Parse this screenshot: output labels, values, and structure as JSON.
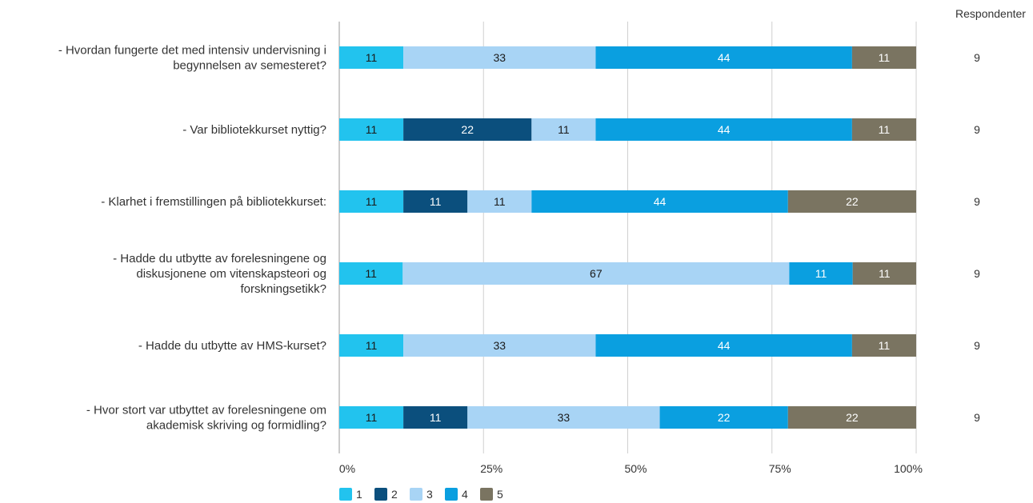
{
  "chart_data": {
    "type": "bar",
    "orientation": "horizontal",
    "stacked": "percent",
    "categories": [
      "- Hvordan fungerte det med intensiv undervisning i begynnelsen av semesteret?",
      "- Var bibliotekkurset nyttig?",
      "- Klarhet i fremstillingen på bibliotekkurset:",
      "- Hadde du utbytte av forelesningene og diskusjonene om vitenskapsteori og forskningsetikk?",
      "- Hadde du utbytte av HMS-kurset?",
      "- Hvor stort var utbyttet av forelesningene om akademisk skriving og formidling?"
    ],
    "category_lines": [
      [
        "- Hvordan fungerte det med intensiv undervisning i",
        "begynnelsen av semesteret?"
      ],
      [
        "- Var bibliotekkurset nyttig?"
      ],
      [
        "- Klarhet i fremstillingen på bibliotekkurset:"
      ],
      [
        "- Hadde du utbytte av forelesningene og",
        "diskusjonene om vitenskapsteori og",
        "forskningsetikk?"
      ],
      [
        "- Hadde du utbytte av HMS-kurset?"
      ],
      [
        "- Hvor stort var utbyttet av forelesningene om",
        "akademisk skriving og formidling?"
      ]
    ],
    "series": [
      {
        "name": "1",
        "color": "#22c3ee",
        "text_color": "#1a1a1a",
        "values": [
          11,
          11,
          11,
          11,
          11,
          11
        ]
      },
      {
        "name": "2",
        "color": "#0b4f7d",
        "text_color": "#ffffff",
        "values": [
          0,
          22,
          11,
          0,
          0,
          11
        ]
      },
      {
        "name": "3",
        "color": "#a8d4f5",
        "text_color": "#1a1a1a",
        "values": [
          33,
          11,
          11,
          67,
          33,
          33
        ]
      },
      {
        "name": "4",
        "color": "#0a9fe0",
        "text_color": "#ffffff",
        "values": [
          44,
          44,
          44,
          11,
          44,
          22
        ]
      },
      {
        "name": "5",
        "color": "#7a7461",
        "text_color": "#ffffff",
        "values": [
          11,
          11,
          22,
          11,
          11,
          22
        ]
      }
    ],
    "x_ticks": [
      "0%",
      "25%",
      "50%",
      "75%",
      "100%"
    ],
    "xlim": [
      0,
      100
    ],
    "grid": true,
    "legend": "bottom-left",
    "respondents_header": "Respondenter",
    "respondents": [
      9,
      9,
      9,
      9,
      9,
      9
    ]
  }
}
